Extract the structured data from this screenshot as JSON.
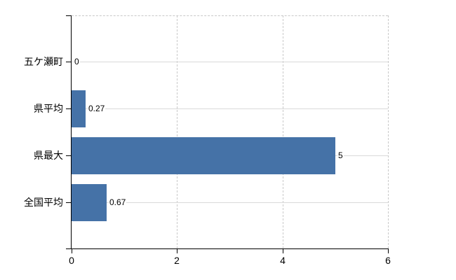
{
  "chart_data": {
    "type": "bar",
    "orientation": "horizontal",
    "title": "",
    "categories": [
      "五ケ瀬町",
      "県平均",
      "県最大",
      "全国平均"
    ],
    "values": [
      0,
      0.27,
      5,
      0.67
    ],
    "value_labels": [
      "0",
      "0.27",
      "5",
      "0.67"
    ],
    "xlim": [
      0,
      6
    ],
    "x_ticks": [
      0,
      2,
      4,
      6
    ],
    "x_tick_labels": [
      "0",
      "2",
      "4",
      "6"
    ],
    "grid": true,
    "legend": false,
    "colors": {
      "bar": "#4572a7",
      "axis": "#000000",
      "gridline_solid": "#d9d9d9",
      "gridline_dashed": "#c9c9c9",
      "text": "#000000",
      "background": "#ffffff"
    }
  }
}
